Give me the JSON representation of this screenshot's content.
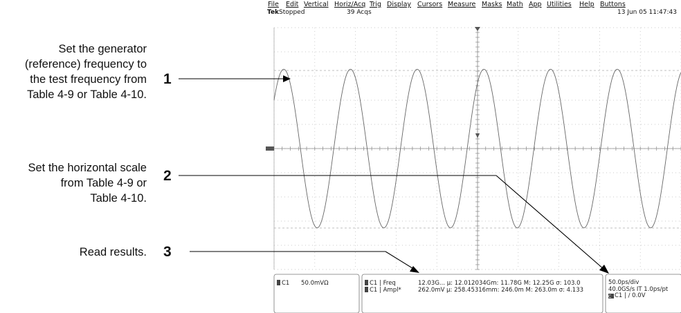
{
  "annotations": [
    {
      "lines": [
        "Set the generator",
        "(reference) frequency to",
        "the test frequency from",
        "Table 4-9 or Table 4-10."
      ],
      "number": "1"
    },
    {
      "lines": [
        "Set the horizontal scale",
        "from Table 4-9  or",
        "Table 4-10."
      ],
      "number": "2"
    },
    {
      "lines": [
        "Read results."
      ],
      "number": "3"
    }
  ],
  "menu": [
    "File",
    "Edit",
    "Vertical",
    "Horiz/Acq",
    "Trig",
    "Display",
    "Cursors",
    "Measure",
    "Masks",
    "Math",
    "App",
    "Utilities",
    "Help",
    "Buttons"
  ],
  "status": {
    "brand": "Tek",
    "state": "Stopped",
    "acqs": "39 Acqs",
    "datetime": "13 Jun 05 11:47:43"
  },
  "channel_readout": {
    "channel": "C1",
    "scale": "50.0mVΩ"
  },
  "measurements": [
    {
      "label": "C1 | Freq",
      "values": "12.03G...  µ:  12.012034Gm: 11.78G M: 12.25G σ:  103.0"
    },
    {
      "label": "C1 | Ampl*",
      "values": "262.0mV µ:  258.45316mm: 246.0m M: 263.0m σ:  4.133"
    }
  ],
  "timebase": {
    "scale": "50.0ps/div",
    "rate": "40.0GS/s IT 1.0ps/pt",
    "trigger_src": "C",
    "trigger": "C1 | ∕ 0.0V"
  },
  "waveform": {
    "cycles_visible": 6.1,
    "amplitude_fraction": 0.82
  }
}
